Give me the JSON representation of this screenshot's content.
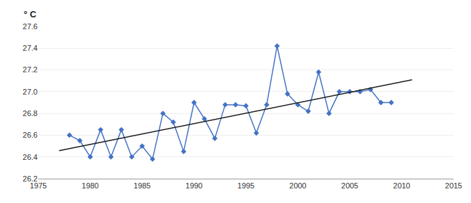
{
  "chart_data": {
    "type": "line",
    "ylabel": "° C",
    "series": [
      {
        "x": [
          1978,
          1979,
          1980,
          1981,
          1982,
          1983,
          1984,
          1985,
          1986,
          1987,
          1988,
          1989,
          1990,
          1991,
          1992,
          1993,
          1994,
          1995,
          1996,
          1997,
          1998,
          1999,
          2000,
          2001,
          2002,
          2003,
          2004,
          2005,
          2006,
          2007,
          2008,
          2009
        ],
        "values": [
          26.6,
          26.55,
          26.4,
          26.65,
          26.4,
          26.65,
          26.4,
          26.5,
          26.38,
          26.8,
          26.72,
          26.45,
          26.9,
          26.75,
          26.57,
          26.88,
          26.88,
          26.87,
          26.62,
          26.88,
          27.42,
          26.98,
          26.88,
          26.82,
          27.18,
          26.8,
          27.0,
          27.0,
          27.0,
          27.02,
          26.9,
          26.9
        ],
        "color": "#4472C4",
        "marker": "diamond"
      },
      {
        "x": [
          1977,
          2011
        ],
        "values": [
          26.4571,
          27.1089
        ],
        "color": "#1a1a1a"
      }
    ],
    "xlim": [
      1975,
      2015
    ],
    "ylim": [
      26.2,
      27.6
    ],
    "xticks": [
      1975,
      1980,
      1985,
      1990,
      1995,
      2000,
      2005,
      2010,
      2015
    ],
    "yticks": [
      26.2,
      26.4,
      26.6,
      26.8,
      {
        "value": 27,
        "label": "27.0"
      },
      27.2,
      27.4,
      27.6
    ],
    "grid": true
  }
}
